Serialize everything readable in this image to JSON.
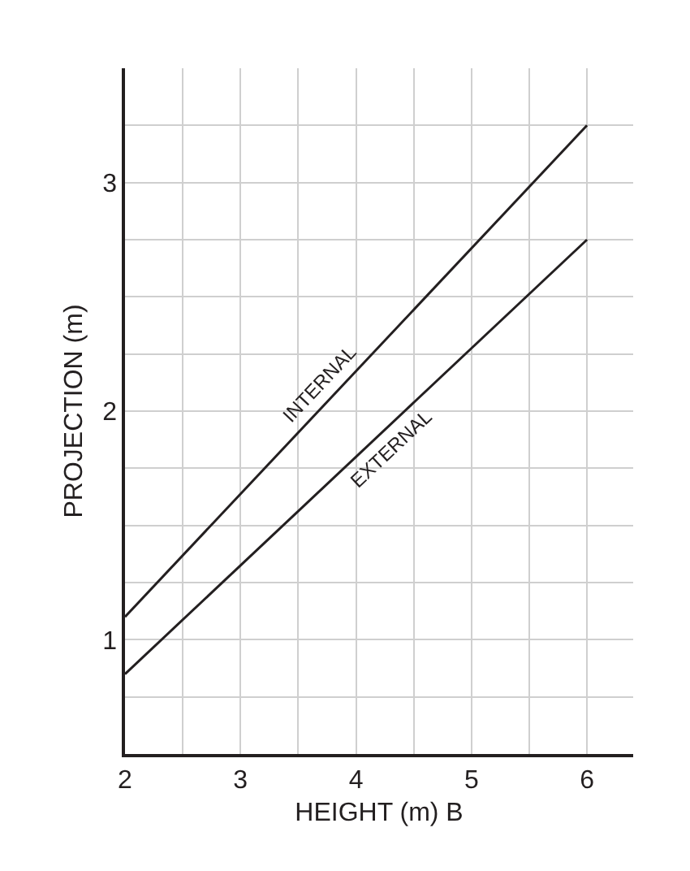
{
  "chart_data": {
    "type": "line",
    "xlabel": "HEIGHT (m) B",
    "ylabel": "PROJECTION (m)",
    "x": [
      2,
      6
    ],
    "series": [
      {
        "name": "INTERNAL",
        "color": "#231f20",
        "values": [
          1.1,
          3.25
        ]
      },
      {
        "name": "EXTERNAL",
        "color": "#231f20",
        "values": [
          0.85,
          2.75
        ]
      }
    ],
    "xlim": [
      2,
      6.4
    ],
    "ylim": [
      0.5,
      3.5
    ],
    "xticks": [
      2,
      {
        "value": 2.5,
        "label": null
      },
      3,
      {
        "value": 3.5,
        "label": null
      },
      4,
      {
        "value": 4.5,
        "label": null
      },
      5,
      {
        "value": 5.5,
        "label": null
      },
      6
    ],
    "yticks": [
      {
        "value": 0.5,
        "label": null
      },
      {
        "value": 0.75,
        "label": null
      },
      1,
      {
        "value": 1.25,
        "label": null
      },
      {
        "value": 1.5,
        "label": null
      },
      {
        "value": 1.75,
        "label": null
      },
      2,
      {
        "value": 2.25,
        "label": null
      },
      {
        "value": 2.5,
        "label": null
      },
      {
        "value": 2.75,
        "label": null
      },
      3,
      {
        "value": 3.25,
        "label": null
      }
    ],
    "grid": true,
    "legend": false,
    "marker": "none",
    "line_style": "solid"
  }
}
